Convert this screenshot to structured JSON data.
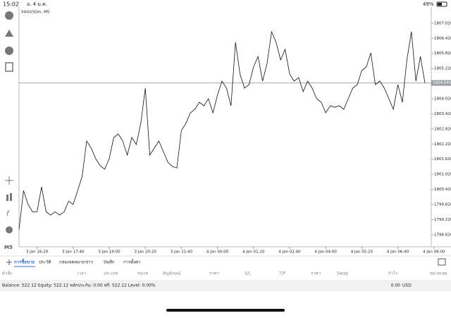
{
  "status_bar": {
    "time": "15:02",
    "date": "อ. 4 ม.ค.",
    "battery": "49%"
  },
  "toolbar": {
    "timeframe": "M5"
  },
  "chart_data": {
    "type": "line",
    "title": "XAUUSDm, M5",
    "color": "#111111",
    "categories": [
      null,
      null,
      null,
      null,
      "3 Jan 16:20",
      null,
      null,
      null,
      null,
      null,
      null,
      null,
      "3 Jan 17:40",
      null,
      null,
      null,
      null,
      null,
      null,
      null,
      "3 Jan 19:00",
      null,
      null,
      null,
      null,
      null,
      null,
      null,
      "3 Jan 20:20",
      null,
      null,
      null,
      null,
      null,
      null,
      null,
      "3 Jan 21:40",
      null,
      null,
      null,
      null,
      null,
      null,
      null,
      "4 Jan 00:00",
      null,
      null,
      null,
      null,
      null,
      null,
      null,
      "4 Jan 01:20",
      null,
      null,
      null,
      null,
      null,
      null,
      null,
      "4 Jan 02:40",
      null,
      null,
      null,
      null,
      null,
      null,
      null,
      "4 Jan 04:00",
      null,
      null,
      null,
      null,
      null,
      null,
      null,
      "4 Jan 05:20",
      null,
      null,
      null,
      null,
      null,
      null,
      null,
      "4 Jan 06:40",
      null,
      null,
      null,
      null,
      null,
      null,
      null,
      "4 Jan 08:00"
    ],
    "values": [
      1798.83,
      1800.37,
      1799.82,
      1799.53,
      1799.53,
      1800.52,
      1799.53,
      1799.4,
      1799.53,
      1799.4,
      1799.53,
      1799.95,
      1799.82,
      1800.37,
      1800.94,
      1802.34,
      1802.06,
      1801.64,
      1801.36,
      1801.22,
      1801.64,
      1802.48,
      1802.62,
      1802.34,
      1801.78,
      1802.48,
      1802.2,
      1803.04,
      1804.44,
      1801.78,
      1802.06,
      1802.34,
      1801.92,
      1801.5,
      1801.33,
      1801.27,
      1802.76,
      1803.04,
      1803.46,
      1803.6,
      1803.88,
      1803.74,
      1804.02,
      1803.46,
      1804.16,
      1804.72,
      1804.44,
      1803.74,
      1806.26,
      1805.0,
      1804.44,
      1804.58,
      1805.28,
      1805.7,
      1804.72,
      1805.42,
      1806.68,
      1806.26,
      1805.56,
      1805.98,
      1805.0,
      1804.72,
      1804.86,
      1804.3,
      1804.72,
      1804.44,
      1804.02,
      1803.88,
      1803.46,
      1803.74,
      1803.68,
      1803.74,
      1803.6,
      1804.02,
      1804.44,
      1804.58,
      1805.14,
      1805.28,
      1805.84,
      1804.58,
      1804.72,
      1804.44,
      1804.02,
      1803.6,
      1804.58,
      1803.88,
      1805.56,
      1806.68,
      1804.72,
      1805.7,
      1804.645,
      null,
      null
    ],
    "current_price": 1804.645,
    "ylim": [
      1798.14,
      1807.66
    ],
    "yticks": [
      {
        "value": 1807.02,
        "label": "1807.020"
      },
      {
        "value": 1806.42,
        "label": "1806.420"
      },
      {
        "value": 1805.82,
        "label": "1805.820"
      },
      {
        "value": 1805.22,
        "label": "1805.220"
      },
      {
        "value": 1804.02,
        "label": "1804.020"
      },
      {
        "value": 1803.42,
        "label": "1803.420"
      },
      {
        "value": 1802.82,
        "label": "1802.820"
      },
      {
        "value": 1802.22,
        "label": "1802.220"
      },
      {
        "value": 1801.62,
        "label": "1801.620"
      },
      {
        "value": 1801.02,
        "label": "1801.020"
      },
      {
        "value": 1800.42,
        "label": "1800.420"
      },
      {
        "value": 1799.82,
        "label": "1799.820"
      },
      {
        "value": 1799.22,
        "label": "1799.220"
      },
      {
        "value": 1798.62,
        "label": "1798.620"
      }
    ],
    "grid": false
  },
  "tabs": [
    "การซื้อขาย",
    "ประวัติ",
    "กล่องจดหมาย",
    "ข่าว",
    "บันทึก",
    "การตั้งค่า"
  ],
  "table": {
    "headers": [
      "คำสั่ง",
      "เวลา",
      "ประเภท",
      "ขนาด",
      "สัญลักษณ์",
      "ราคา",
      "S/L",
      "T/P",
      "ราคา",
      "Swap",
      "กำไร",
      "หมายเหตุ"
    ]
  },
  "summary": {
    "text": "Balance: 522.12 Equity: 522.12 หลักประกัน: 0.00 ฟรี: 522.12 Level: 0.00%",
    "profit": "0.00",
    "currency": "USD"
  }
}
